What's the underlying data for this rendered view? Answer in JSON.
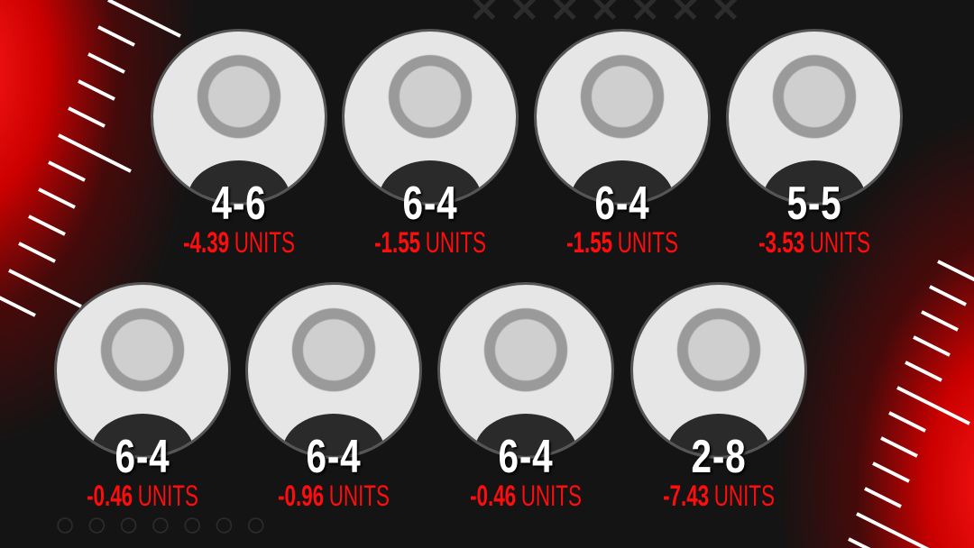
{
  "colors": {
    "accent": "#ff0d0d",
    "background": "#141414",
    "record": "#ffffff"
  },
  "experts": [
    {
      "record": "4-6",
      "units_value": "-4.39",
      "units_label": "UNITS"
    },
    {
      "record": "6-4",
      "units_value": "-1.55",
      "units_label": "UNITS"
    },
    {
      "record": "6-4",
      "units_value": "-1.55",
      "units_label": "UNITS"
    },
    {
      "record": "5-5",
      "units_value": "-3.53",
      "units_label": "UNITS"
    },
    {
      "record": "6-4",
      "units_value": "-0.46",
      "units_label": "UNITS"
    },
    {
      "record": "6-4",
      "units_value": "-0.96",
      "units_label": "UNITS"
    },
    {
      "record": "6-4",
      "units_value": "-0.46",
      "units_label": "UNITS"
    },
    {
      "record": "2-8",
      "units_value": "-7.43",
      "units_label": "UNITS"
    }
  ]
}
